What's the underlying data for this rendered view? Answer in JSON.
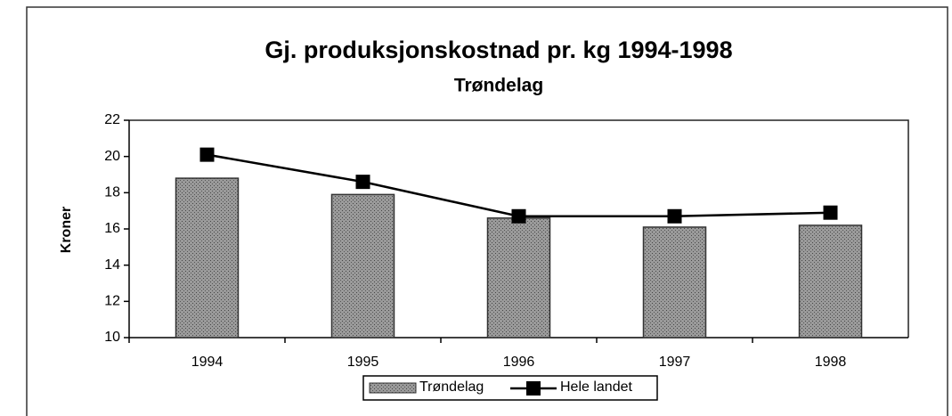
{
  "chart_data": {
    "type": "bar",
    "title": "Gj. produksjonskostnad pr. kg 1994-1998",
    "subtitle": "Trøndelag",
    "y_label": "Kroner",
    "categories": [
      "1994",
      "1995",
      "1996",
      "1997",
      "1998"
    ],
    "series": [
      {
        "name": "Trøndelag",
        "type": "bar",
        "color": "#8c8c8c",
        "values": [
          18.8,
          17.9,
          16.6,
          16.1,
          16.2
        ]
      },
      {
        "name": "Hele landet",
        "type": "line",
        "color": "#000000",
        "values": [
          20.1,
          18.6,
          16.7,
          16.7,
          16.9
        ]
      }
    ],
    "ylim": [
      10,
      22
    ],
    "yticks": [
      10,
      12,
      14,
      16,
      18,
      20,
      22
    ]
  }
}
